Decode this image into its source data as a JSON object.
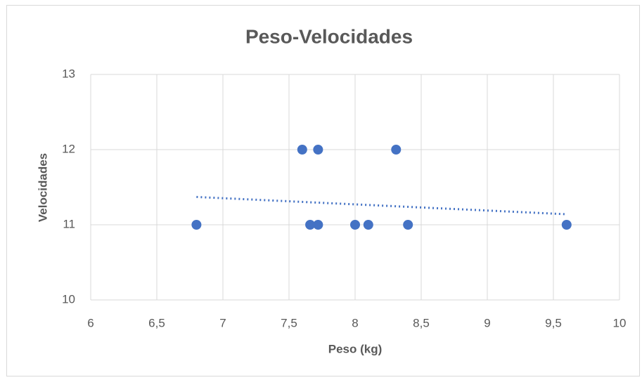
{
  "chart_data": {
    "type": "scatter",
    "title": "Peso-Velocidades",
    "x_label": "Peso (kg)",
    "y_label": "Velocidades",
    "x": [
      6.8,
      7.6,
      7.72,
      8.31,
      7.66,
      7.72,
      8.0,
      8.1,
      8.4,
      9.6
    ],
    "values": [
      11,
      12,
      12,
      12,
      11,
      11,
      11,
      11,
      11,
      11
    ],
    "color": "#4472c4",
    "trendline": {
      "x": [
        6.8,
        9.6
      ],
      "values": [
        11.37,
        11.14
      ],
      "color": "#4472c4",
      "style": "dotted"
    },
    "xlim": [
      6,
      10
    ],
    "xticks": [
      6,
      {
        "value": 6.5,
        "label": "6,5"
      },
      7,
      {
        "value": 7.5,
        "label": "7,5"
      },
      8,
      {
        "value": 8.5,
        "label": "8,5"
      },
      9,
      {
        "value": 9.5,
        "label": "9,5"
      },
      10
    ],
    "ylim": [
      10,
      13
    ],
    "yticks": [
      10,
      11,
      12,
      13
    ],
    "grid": true
  }
}
